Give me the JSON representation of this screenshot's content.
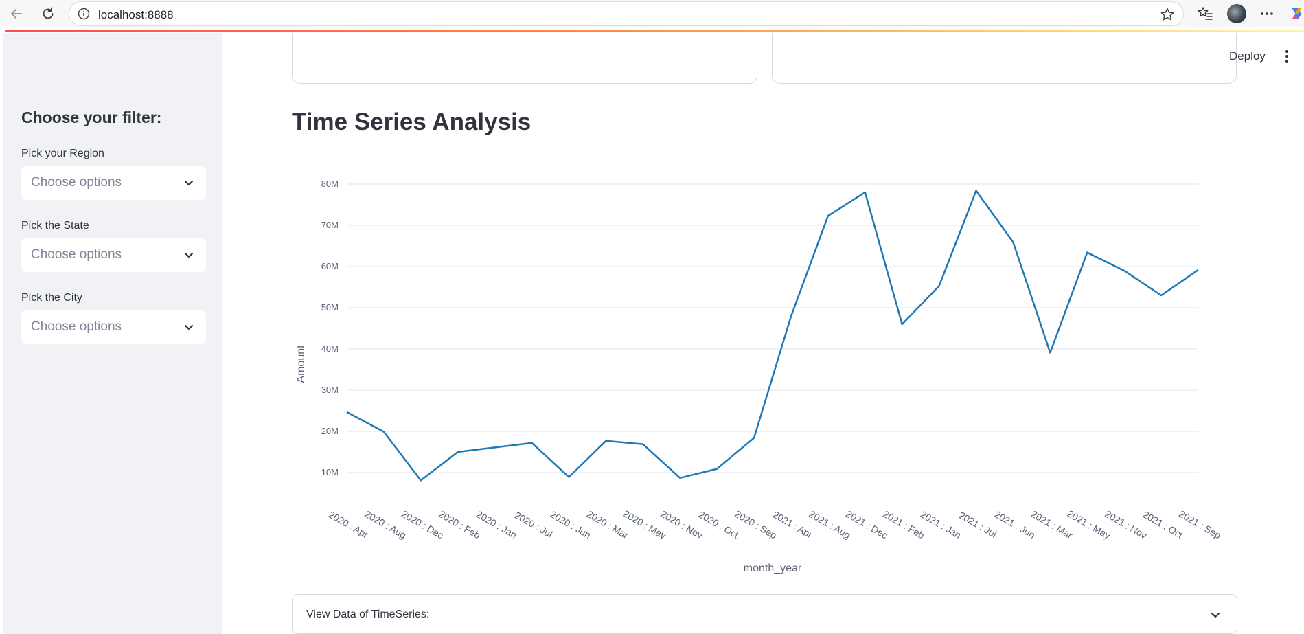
{
  "browser": {
    "url": "localhost:8888"
  },
  "sidebar": {
    "title": "Choose your filter:",
    "filters": [
      {
        "label": "Pick your Region",
        "placeholder": "Choose options"
      },
      {
        "label": "Pick the State",
        "placeholder": "Choose options"
      },
      {
        "label": "Pick the City",
        "placeholder": "Choose options"
      }
    ]
  },
  "header": {
    "deploy_label": "Deploy"
  },
  "main": {
    "title": "Time Series Analysis",
    "expander_label": "View Data of TimeSeries:"
  },
  "colors": {
    "line": "#1f77b4",
    "accent": "#ff4b4b",
    "text": "#31333f",
    "tick_text": "#5a6275"
  },
  "chart_data": {
    "type": "line",
    "xlabel": "month_year",
    "ylabel": "Amount",
    "ylim": [
      3000000,
      83000000
    ],
    "yticks": [
      10000000,
      20000000,
      30000000,
      40000000,
      50000000,
      60000000,
      70000000,
      80000000
    ],
    "ytick_labels": [
      "10M",
      "20M",
      "30M",
      "40M",
      "50M",
      "60M",
      "70M",
      "80M"
    ],
    "grid": true,
    "categories": [
      "2020 : Apr",
      "2020 : Aug",
      "2020 : Dec",
      "2020 : Feb",
      "2020 : Jan",
      "2020 : Jul",
      "2020 : Jun",
      "2020 : Mar",
      "2020 : May",
      "2020 : Nov",
      "2020 : Oct",
      "2020 : Sep",
      "2021 : Apr",
      "2021 : Aug",
      "2021 : Dec",
      "2021 : Feb",
      "2021 : Jan",
      "2021 : Jul",
      "2021 : Jun",
      "2021 : Mar",
      "2021 : May",
      "2021 : Nov",
      "2021 : Oct",
      "2021 : Sep"
    ],
    "series": [
      {
        "values": [
          24700000,
          19900000,
          8100000,
          15000000,
          16100000,
          17200000,
          8900000,
          17700000,
          16900000,
          8700000,
          10900000,
          18400000,
          47900000,
          72300000,
          78000000,
          46000000,
          55300000,
          78400000,
          65900000,
          39100000,
          63400000,
          59000000,
          53000000,
          59200000
        ]
      }
    ]
  }
}
